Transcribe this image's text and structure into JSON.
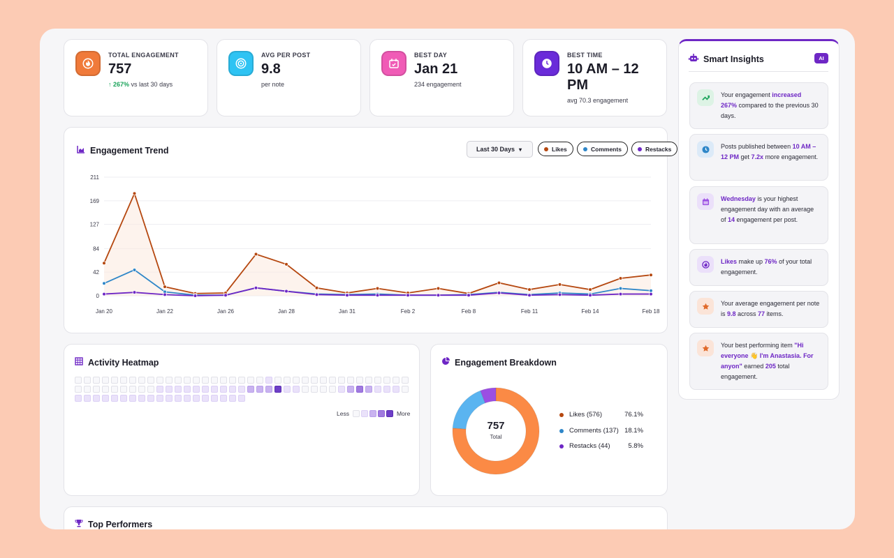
{
  "stats": [
    {
      "label": "TOTAL ENGAGEMENT",
      "value": "757",
      "sub_up": "↑ 267%",
      "sub": "vs last 30 days",
      "icon": "flame-icon"
    },
    {
      "label": "AVG PER POST",
      "value": "9.8",
      "sub_up": "",
      "sub": "per note",
      "icon": "target-icon"
    },
    {
      "label": "BEST DAY",
      "value": "Jan 21",
      "sub_up": "",
      "sub": "234 engagement",
      "icon": "calendar-check-icon"
    },
    {
      "label": "BEST TIME",
      "value": "10 AM – 12 PM",
      "sub_up": "",
      "sub": "avg 70.3 engagement",
      "icon": "clock-icon"
    }
  ],
  "colors": {
    "likes": "#B5470F",
    "comments": "#2E86C8",
    "restacks": "#6E27C5",
    "donut_likes": "#FB8A45",
    "donut_comments": "#5AB4F0",
    "donut_restacks": "#9B4FE3"
  },
  "trend": {
    "title": "Engagement Trend",
    "range": "Last 30 Days",
    "filters": [
      "Likes",
      "Comments",
      "Restacks"
    ]
  },
  "chart_data": {
    "type": "line",
    "title": "Engagement Trend",
    "ylim": [
      0,
      211
    ],
    "yticks": [
      0,
      42,
      84,
      127,
      169,
      211
    ],
    "x_labels": [
      "Jan 20",
      "Jan 22",
      "Jan 26",
      "Jan 28",
      "Jan 31",
      "Feb 2",
      "Feb 8",
      "Feb 11",
      "Feb 14",
      "Feb 18"
    ],
    "x_label_index": [
      0,
      2,
      4,
      6,
      8,
      10,
      12,
      14,
      16,
      18
    ],
    "series": [
      {
        "name": "Likes",
        "values": [
          58,
          182,
          16,
          4,
          5,
          74,
          56,
          14,
          5,
          13,
          5,
          13,
          4,
          23,
          11,
          20,
          11,
          31,
          37
        ]
      },
      {
        "name": "Comments",
        "values": [
          22,
          46,
          7,
          1,
          1,
          14,
          8,
          3,
          2,
          3,
          1,
          1,
          2,
          6,
          2,
          5,
          3,
          13,
          9
        ]
      },
      {
        "name": "Restacks",
        "values": [
          3,
          6,
          2,
          0,
          1,
          14,
          8,
          2,
          1,
          1,
          1,
          1,
          1,
          5,
          1,
          2,
          1,
          3,
          3
        ]
      }
    ]
  },
  "heatmap": {
    "title": "Activity Heatmap",
    "legend_less": "Less",
    "legend_more": "More",
    "rows": [
      [
        0,
        0,
        0,
        0,
        0,
        0,
        0,
        0,
        0,
        0,
        0,
        0,
        0,
        0,
        0,
        0,
        0,
        0,
        0,
        0,
        0,
        1,
        0,
        0,
        0,
        0,
        0,
        0,
        0,
        0,
        0,
        0,
        0,
        0,
        0,
        0,
        0
      ],
      [
        0,
        0,
        0,
        0,
        0,
        0,
        0,
        0,
        0,
        1,
        1,
        1,
        1,
        1,
        1,
        1,
        1,
        1,
        1,
        2,
        2,
        2,
        4,
        1,
        1,
        0,
        0,
        0,
        0,
        1,
        2,
        3,
        2,
        1,
        1,
        1,
        0
      ],
      [
        1,
        1,
        1,
        1,
        1,
        1,
        1,
        1,
        1,
        1,
        1,
        1,
        1,
        1,
        1,
        1,
        1,
        1,
        1
      ]
    ]
  },
  "breakdown": {
    "title": "Engagement Breakdown",
    "total": "757",
    "total_label": "Total",
    "items": [
      {
        "label": "Likes (576)",
        "pct": "76.1%",
        "value": 576
      },
      {
        "label": "Comments (137)",
        "pct": "18.1%",
        "value": 137
      },
      {
        "label": "Restacks (44)",
        "pct": "5.8%",
        "value": 44
      }
    ]
  },
  "top": {
    "title": "Top Performers"
  },
  "insights": {
    "title": "Smart Insights",
    "badge": "AI",
    "items": [
      {
        "icon": "trending-up-icon",
        "parts": [
          [
            "Your engagement ",
            0
          ],
          [
            "increased",
            1
          ],
          [
            "\n",
            0
          ],
          [
            "267%",
            1
          ],
          [
            " compared to the previous 30 days.",
            0
          ]
        ]
      },
      {
        "icon": "clock-icon",
        "parts": [
          [
            "Posts published between ",
            0
          ],
          [
            "10 AM – 12 PM",
            1
          ],
          [
            " get ",
            0
          ],
          [
            "7.2x",
            1
          ],
          [
            " more engagement.",
            0
          ]
        ]
      },
      {
        "icon": "calendar-icon",
        "parts": [
          [
            "Wednesday",
            1
          ],
          [
            " is your highest engagement day with an average of ",
            0
          ],
          [
            "14",
            1
          ],
          [
            " engagement per post.",
            0
          ]
        ]
      },
      {
        "icon": "flame-icon",
        "parts": [
          [
            "Likes",
            1
          ],
          [
            " make up ",
            0
          ],
          [
            "76%",
            1
          ],
          [
            " of your total engagement.",
            0
          ]
        ]
      },
      {
        "icon": "star-icon",
        "parts": [
          [
            "Your average engagement per note is ",
            0
          ],
          [
            "9.8",
            1
          ],
          [
            " across ",
            0
          ],
          [
            "77",
            1
          ],
          [
            " items.",
            0
          ]
        ]
      },
      {
        "icon": "star-icon",
        "parts": [
          [
            "Your best performing item ",
            0
          ],
          [
            "\"Hi everyone 👋 I'm Anastasia. For anyon\"",
            1
          ],
          [
            " earned ",
            0
          ],
          [
            "205",
            1
          ],
          [
            " total engagement.",
            0
          ]
        ]
      }
    ]
  }
}
